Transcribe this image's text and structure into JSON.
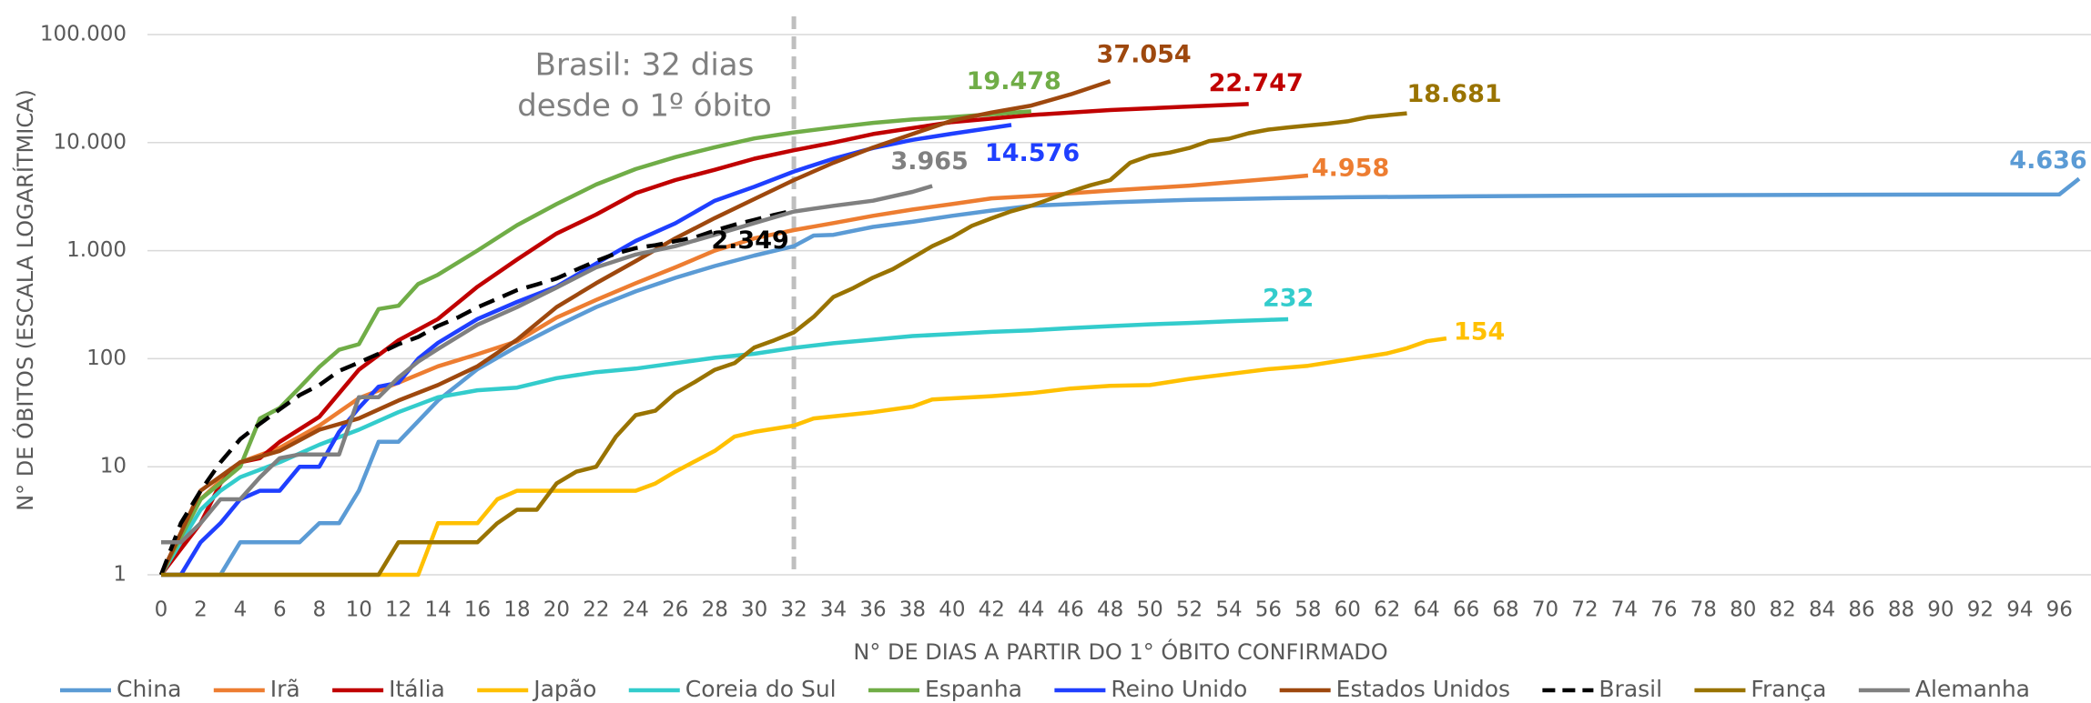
{
  "chart_data": {
    "type": "line",
    "ylabel": "N° DE ÓBITOS (ESCALA LOGARÍTMICA)",
    "xlabel": "N° DE DIAS A PARTIR DO 1° ÓBITO CONFIRMADO",
    "annotation": {
      "lines": [
        "Brasil: 32 dias",
        "desde o 1º óbito"
      ],
      "x": 32
    },
    "log_y": true,
    "grid": true,
    "legend": "bottom",
    "xlim": [
      0,
      97
    ],
    "ylim": [
      1,
      100000
    ],
    "xticks": [
      0,
      2,
      4,
      6,
      8,
      10,
      12,
      14,
      16,
      18,
      20,
      22,
      24,
      26,
      28,
      30,
      32,
      34,
      36,
      38,
      40,
      42,
      44,
      46,
      48,
      50,
      52,
      54,
      56,
      58,
      60,
      62,
      64,
      66,
      68,
      70,
      72,
      74,
      76,
      78,
      80,
      82,
      84,
      86,
      88,
      90,
      92,
      94,
      96
    ],
    "yticks": [
      1,
      10,
      100,
      {
        "value": 1000,
        "label": "1.000"
      },
      {
        "value": 10000,
        "label": "10.000"
      },
      {
        "value": 100000,
        "label": "100.000"
      }
    ],
    "series": [
      {
        "name": "China",
        "color": "#5b9bd5",
        "x": [
          0,
          3,
          4,
          7,
          8,
          9,
          10,
          11,
          12,
          14,
          16,
          18,
          20,
          22,
          24,
          26,
          28,
          30,
          32,
          33,
          34,
          36,
          38,
          40,
          42,
          44,
          48,
          52,
          56,
          60,
          66,
          72,
          80,
          88,
          96,
          97
        ],
        "values": [
          1,
          1,
          2,
          2,
          3,
          3,
          6,
          17,
          17,
          41,
          80,
          130,
          200,
          300,
          420,
          560,
          720,
          900,
          1100,
          1380,
          1400,
          1660,
          1850,
          2100,
          2350,
          2600,
          2800,
          2950,
          3050,
          3120,
          3180,
          3230,
          3270,
          3300,
          3320,
          4636
        ],
        "value_labels": [
          null,
          null,
          null,
          null,
          null,
          null,
          null,
          null,
          null,
          null,
          null,
          null,
          null,
          null,
          null,
          null,
          null,
          null,
          null,
          null,
          null,
          null,
          null,
          null,
          null,
          null,
          null,
          null,
          null,
          null,
          null,
          null,
          null,
          null,
          null,
          "4.636"
        ]
      },
      {
        "name": "Irã",
        "color": "#ed7d31",
        "x": [
          0,
          2,
          4,
          6,
          8,
          10,
          12,
          14,
          16,
          18,
          20,
          22,
          24,
          26,
          28,
          30,
          32,
          34,
          36,
          38,
          40,
          42,
          44,
          48,
          52,
          56,
          58
        ],
        "values": [
          1,
          5,
          11,
          15,
          24,
          43,
          60,
          85,
          110,
          145,
          240,
          350,
          500,
          700,
          1000,
          1300,
          1550,
          1800,
          2100,
          2400,
          2700,
          3050,
          3200,
          3600,
          4000,
          4600,
          4958
        ],
        "value_labels": [
          null,
          null,
          null,
          null,
          null,
          null,
          null,
          null,
          null,
          null,
          null,
          null,
          null,
          null,
          null,
          null,
          null,
          null,
          null,
          null,
          null,
          null,
          null,
          null,
          null,
          null,
          "4.958"
        ]
      },
      {
        "name": "Itália",
        "color": "#c00000",
        "x": [
          0,
          2,
          3,
          4,
          5,
          6,
          8,
          10,
          12,
          14,
          16,
          18,
          20,
          22,
          24,
          26,
          28,
          30,
          32,
          34,
          36,
          40,
          44,
          48,
          52,
          55
        ],
        "values": [
          1,
          3,
          7,
          11,
          12,
          17,
          29,
          79,
          148,
          233,
          463,
          827,
          1441,
          2158,
          3405,
          4500,
          5600,
          7100,
          8500,
          10000,
          12000,
          15500,
          18000,
          20000,
          21600,
          22747
        ],
        "value_labels": [
          null,
          null,
          null,
          null,
          null,
          null,
          null,
          null,
          null,
          null,
          null,
          null,
          null,
          null,
          null,
          null,
          null,
          null,
          null,
          null,
          null,
          null,
          null,
          null,
          null,
          "22.747"
        ]
      },
      {
        "name": "Japão",
        "color": "#ffc000",
        "x": [
          0,
          13,
          14,
          16,
          17,
          18,
          24,
          25,
          26,
          28,
          29,
          30,
          32,
          33,
          36,
          38,
          39,
          42,
          44,
          46,
          48,
          50,
          52,
          54,
          56,
          58,
          60,
          62,
          63,
          64,
          65
        ],
        "values": [
          1,
          1,
          3,
          3,
          5,
          6,
          6,
          7,
          9,
          14,
          19,
          21,
          24,
          28,
          32,
          36,
          42,
          45,
          48,
          53,
          56,
          57,
          65,
          72,
          80,
          86,
          98,
          112,
          125,
          145,
          154
        ],
        "value_labels": [
          null,
          null,
          null,
          null,
          null,
          null,
          null,
          null,
          null,
          null,
          null,
          null,
          null,
          null,
          null,
          null,
          null,
          null,
          null,
          null,
          null,
          null,
          null,
          null,
          null,
          null,
          null,
          null,
          null,
          null,
          "154"
        ]
      },
      {
        "name": "Coreia do Sul",
        "color": "#33cccc",
        "x": [
          0,
          2,
          3,
          4,
          6,
          8,
          10,
          12,
          14,
          16,
          18,
          20,
          22,
          24,
          26,
          28,
          30,
          32,
          34,
          36,
          38,
          40,
          42,
          44,
          46,
          48,
          50,
          52,
          54,
          56,
          57
        ],
        "values": [
          1,
          4,
          6,
          8,
          11,
          16,
          22,
          32,
          44,
          51,
          54,
          66,
          75,
          81,
          91,
          102,
          111,
          126,
          139,
          150,
          162,
          169,
          177,
          183,
          192,
          200,
          208,
          214,
          222,
          229,
          232
        ],
        "value_labels": [
          null,
          null,
          null,
          null,
          null,
          null,
          null,
          null,
          null,
          null,
          null,
          null,
          null,
          null,
          null,
          null,
          null,
          null,
          null,
          null,
          null,
          null,
          null,
          null,
          null,
          null,
          null,
          null,
          null,
          null,
          "232"
        ]
      },
      {
        "name": "Espanha",
        "color": "#70ad47",
        "x": [
          0,
          2,
          4,
          5,
          6,
          7,
          8,
          9,
          10,
          11,
          12,
          13,
          14,
          16,
          18,
          20,
          22,
          24,
          26,
          28,
          30,
          32,
          34,
          36,
          38,
          40,
          44
        ],
        "values": [
          1,
          5,
          10,
          28,
          35,
          54,
          84,
          121,
          136,
          288,
          309,
          491,
          598,
          1002,
          1720,
          2696,
          4089,
          5690,
          7340,
          9053,
          10935,
          12418,
          13798,
          15238,
          16353,
          17209,
          19478
        ],
        "value_labels": [
          null,
          null,
          null,
          null,
          null,
          null,
          null,
          null,
          null,
          null,
          null,
          null,
          null,
          null,
          null,
          null,
          null,
          null,
          null,
          null,
          null,
          null,
          null,
          null,
          null,
          null,
          "19.478"
        ]
      },
      {
        "name": "Reino Unido",
        "color": "#1f3fff",
        "x": [
          0,
          1,
          2,
          3,
          4,
          5,
          6,
          7,
          8,
          9,
          10,
          11,
          12,
          13,
          14,
          16,
          18,
          20,
          22,
          24,
          26,
          28,
          30,
          32,
          34,
          36,
          38,
          40,
          42,
          43
        ],
        "values": [
          1,
          1,
          2,
          3,
          5,
          6,
          6,
          10,
          10,
          21,
          35,
          55,
          60,
          100,
          140,
          233,
          335,
          465,
          760,
          1230,
          1790,
          2900,
          3900,
          5400,
          7100,
          8900,
          10600,
          12100,
          13700,
          14576
        ],
        "value_labels": [
          null,
          null,
          null,
          null,
          null,
          null,
          null,
          null,
          null,
          null,
          null,
          null,
          null,
          null,
          null,
          null,
          null,
          null,
          null,
          null,
          null,
          null,
          null,
          null,
          null,
          null,
          null,
          null,
          null,
          "14.576"
        ]
      },
      {
        "name": "Estados Unidos",
        "color": "#9e480e",
        "x": [
          0,
          2,
          4,
          6,
          8,
          10,
          12,
          14,
          16,
          18,
          20,
          22,
          24,
          26,
          28,
          30,
          32,
          34,
          36,
          38,
          40,
          42,
          44,
          46,
          48
        ],
        "values": [
          1,
          6,
          11,
          14,
          22,
          28,
          41,
          57,
          85,
          150,
          300,
          500,
          800,
          1300,
          2000,
          3000,
          4500,
          6500,
          9000,
          12000,
          16000,
          19000,
          22000,
          28000,
          37054
        ],
        "value_labels": [
          null,
          null,
          null,
          null,
          null,
          null,
          null,
          null,
          null,
          null,
          null,
          null,
          null,
          null,
          null,
          null,
          null,
          null,
          null,
          null,
          null,
          null,
          null,
          null,
          "37.054"
        ]
      },
      {
        "name": "Brasil",
        "color": "#000000",
        "dashed": true,
        "x": [
          0,
          1,
          2,
          3,
          4,
          5,
          6,
          7,
          8,
          9,
          10,
          11,
          12,
          13,
          14,
          15,
          16,
          17,
          18,
          19,
          20,
          21,
          22,
          23,
          24,
          25,
          26,
          27,
          28,
          29,
          30,
          31,
          32
        ],
        "values": [
          1,
          3,
          6,
          11,
          18,
          25,
          34,
          46,
          57,
          77,
          92,
          111,
          136,
          159,
          201,
          240,
          299,
          359,
          431,
          486,
          553,
          667,
          800,
          941,
          1056,
          1124,
          1223,
          1328,
          1532,
          1736,
          1924,
          2141,
          2349
        ],
        "value_labels": [
          null,
          null,
          null,
          null,
          null,
          null,
          null,
          null,
          null,
          null,
          null,
          null,
          null,
          null,
          null,
          null,
          null,
          null,
          null,
          null,
          null,
          null,
          null,
          null,
          null,
          null,
          null,
          null,
          null,
          null,
          null,
          null,
          "2.349"
        ]
      },
      {
        "name": "França",
        "color": "#997300",
        "x": [
          0,
          11,
          12,
          16,
          17,
          18,
          19,
          20,
          21,
          22,
          23,
          24,
          25,
          26,
          27,
          28,
          29,
          30,
          31,
          32,
          33,
          34,
          35,
          36,
          37,
          38,
          39,
          40,
          41,
          42,
          43,
          44,
          45,
          46,
          47,
          48,
          49,
          50,
          51,
          52,
          53,
          54,
          55,
          56,
          57,
          58,
          59,
          60,
          61,
          62,
          63
        ],
        "values": [
          1,
          1,
          2,
          2,
          3,
          4,
          4,
          7,
          9,
          10,
          19,
          30,
          33,
          48,
          61,
          79,
          91,
          127,
          148,
          175,
          244,
          372,
          450,
          562,
          674,
          860,
          1100,
          1331,
          1696,
          1995,
          2314,
          2606,
          3024,
          3523,
          4032,
          4503,
          6507,
          7560,
          8078,
          8911,
          10328,
          10869,
          12210,
          13197,
          13832,
          14393,
          14967,
          15729,
          17167,
          17920,
          18681
        ],
        "value_labels": [
          null,
          null,
          null,
          null,
          null,
          null,
          null,
          null,
          null,
          null,
          null,
          null,
          null,
          null,
          null,
          null,
          null,
          null,
          null,
          null,
          null,
          null,
          null,
          null,
          null,
          null,
          null,
          null,
          null,
          null,
          null,
          null,
          null,
          null,
          null,
          null,
          null,
          null,
          null,
          null,
          null,
          null,
          null,
          null,
          null,
          null,
          null,
          null,
          null,
          null,
          "18.681"
        ]
      },
      {
        "name": "Alemanha",
        "color": "#808080",
        "x": [
          0,
          1,
          2,
          3,
          4,
          5,
          6,
          7,
          8,
          9,
          10,
          11,
          12,
          13,
          14,
          16,
          18,
          20,
          22,
          24,
          26,
          28,
          30,
          32,
          34,
          36,
          38,
          39
        ],
        "values": [
          2,
          2,
          3,
          5,
          5,
          8,
          12,
          13,
          13,
          13,
          44,
          44,
          67,
          94,
          123,
          206,
          300,
          455,
          700,
          920,
          1100,
          1400,
          1800,
          2300,
          2600,
          2900,
          3500,
          3965
        ],
        "value_labels": [
          null,
          null,
          null,
          null,
          null,
          null,
          null,
          null,
          null,
          null,
          null,
          null,
          null,
          null,
          null,
          null,
          null,
          null,
          null,
          null,
          null,
          null,
          null,
          null,
          null,
          null,
          null,
          "3.965"
        ]
      }
    ]
  }
}
